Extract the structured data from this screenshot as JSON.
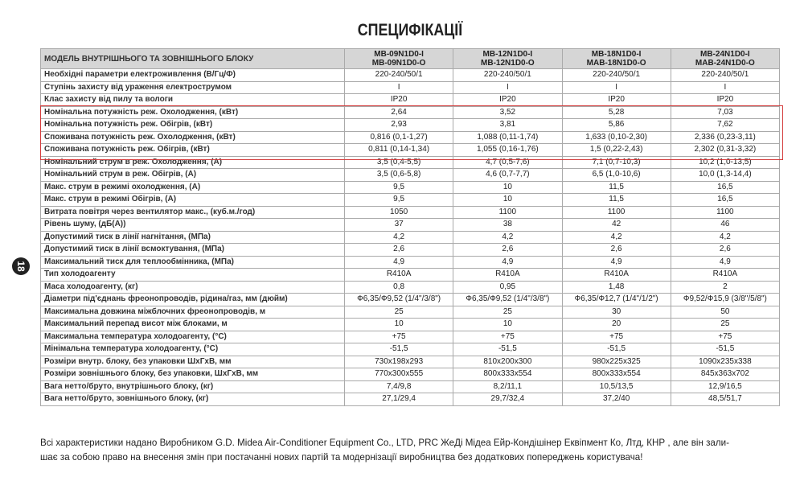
{
  "title": "СПЕЦИФІКАЦІЇ",
  "page_number": "18",
  "table": {
    "header": {
      "label": "МОДЕЛЬ ВНУТРІШНЬОГО ТА ЗОВНІШНЬОГО БЛОКУ",
      "models": [
        [
          "MB-09N1D0-I",
          "MB-09N1D0-O"
        ],
        [
          "MB-12N1D0-I",
          "MB-12N1D0-O"
        ],
        [
          "MB-18N1D0-I",
          "MAB-18N1D0-O"
        ],
        [
          "MB-24N1D0-I",
          "MAB-24N1D0-O"
        ]
      ]
    },
    "rows": [
      [
        "Необхідні параметри  електроживлення (В/Гц/Ф)",
        "220-240/50/1",
        "220-240/50/1",
        "220-240/50/1",
        "220-240/50/1"
      ],
      [
        "Ступінь захисту від ураження електрострумом",
        "I",
        "I",
        "I",
        "I"
      ],
      [
        "Клас захисту від пилу та вологи",
        "IP20",
        "IP20",
        "IP20",
        "IP20"
      ],
      [
        "Номінальна потужність реж. Охолодження, (кВт)",
        "2,64",
        "3,52",
        "5,28",
        "7,03"
      ],
      [
        "Номінальна потужність реж. Обігрів, (кВт)",
        "2,93",
        "3,81",
        "5,86",
        "7,62"
      ],
      [
        "Споживана потужність реж. Охолодження, (кВт)",
        "0,816 (0,1-1,27)",
        "1,088 (0,11-1,74)",
        "1,633 (0,10-2,30)",
        "2,336 (0,23-3,11)"
      ],
      [
        "Споживана потужність реж. Обігрів, (кВт)",
        "0,811 (0,14-1,34)",
        "1,055 (0,16-1,76)",
        "1,5 (0,22-2,43)",
        "2,302 (0,31-3,32)"
      ],
      [
        "Номінальний струм в реж. Охолодження, (А)",
        "3,5 (0,4-5,5)",
        "4,7 (0,5-7,6)",
        "7,1 (0,7-10,3)",
        "10,2 (1,0-13,5)"
      ],
      [
        "Номінальний струм в реж. Обігрів, (А)",
        "3,5 (0,6-5,8)",
        "4,6 (0,7-7,7)",
        "6,5 (1,0-10,6)",
        "10,0 (1,3-14,4)"
      ],
      [
        "Макс. струм в режимі охолодження, (А)",
        "9,5",
        "10",
        "11,5",
        "16,5"
      ],
      [
        "Макс. струм в режимі Обігрів, (А)",
        "9,5",
        "10",
        "11,5",
        "16,5"
      ],
      [
        "Витрата повітря через вентилятор макс., (куб.м./год)",
        "1050",
        "1100",
        "1100",
        "1100"
      ],
      [
        "Рівень шуму, (дБ(А))",
        "37",
        "38",
        "42",
        "46"
      ],
      [
        "Допустимий тиск в лінії нагнітання, (МПа)",
        "4,2",
        "4,2",
        "4,2",
        "4,2"
      ],
      [
        "Допустимий тиск в лінії всмоктування, (МПа)",
        "2,6",
        "2,6",
        "2,6",
        "2,6"
      ],
      [
        "Максимальний тиск для теплообмінника, (МПа)",
        "4,9",
        "4,9",
        "4,9",
        "4,9"
      ],
      [
        "Тип холодоагенту",
        "R410A",
        "R410A",
        "R410A",
        "R410A"
      ],
      [
        "Маса холодоагенту, (кг)",
        "0,8",
        "0,95",
        "1,48",
        "2"
      ],
      [
        "Діаметри під'єднань фреонопроводів, рідина/газ, мм (дюйм)",
        "Ф6,35/Ф9,52 (1/4\"/3/8\")",
        "Ф6,35/Ф9,52 (1/4\"/3/8\")",
        "Ф6,35/Ф12,7 (1/4\"/1/2\")",
        "Ф9,52/Ф15,9 (3/8\"/5/8\")"
      ],
      [
        "Максимальна довжина міжблочних фреонопроводів, м",
        "25",
        "25",
        "30",
        "50"
      ],
      [
        "Максимальний перепад висот між блоками, м",
        "10",
        "10",
        "20",
        "25"
      ],
      [
        "Максимальна температура холодоагенту, (°C)",
        "+75",
        "+75",
        "+75",
        "+75"
      ],
      [
        "Мінімальна температура холодоагенту, (°C)",
        "-51,5",
        "-51,5",
        "-51,5",
        "-51,5"
      ],
      [
        "Розміри внутр. блоку, без упаковки ШхГхВ, мм",
        "730x198x293",
        "810x200x300",
        "980x225x325",
        "1090x235x338"
      ],
      [
        "Розміри зовнішнього блоку, без упаковки, ШхГхВ, мм",
        "770x300x555",
        "800x333x554",
        "800x333x554",
        "845x363x702"
      ],
      [
        "Вага нетто/бруто, внутрішнього блоку, (кг)",
        "7,4/9,8",
        "8,2/11,1",
        "10,5/13,5",
        "12,9/16,5"
      ],
      [
        "Вага нетто/бруто, зовнішнього блоку, (кг)",
        "27,1/29,4",
        "29,7/32,4",
        "37,2/40",
        "48,5/51,7"
      ]
    ]
  },
  "footer": {
    "lines": [
      "Всі характеристики надано Виробником G.D. Midea Air-Conditioner Equipment Co., LTD, PRC ЖеДі Мідеа Ейр-Кондішінер Еквіпмент Ко, Лтд, КНР , але він зали-",
      "шає за собою право на внесення змін при постачанні нових партій та модернізації виробництва без додаткових попереджень користувача!"
    ]
  }
}
